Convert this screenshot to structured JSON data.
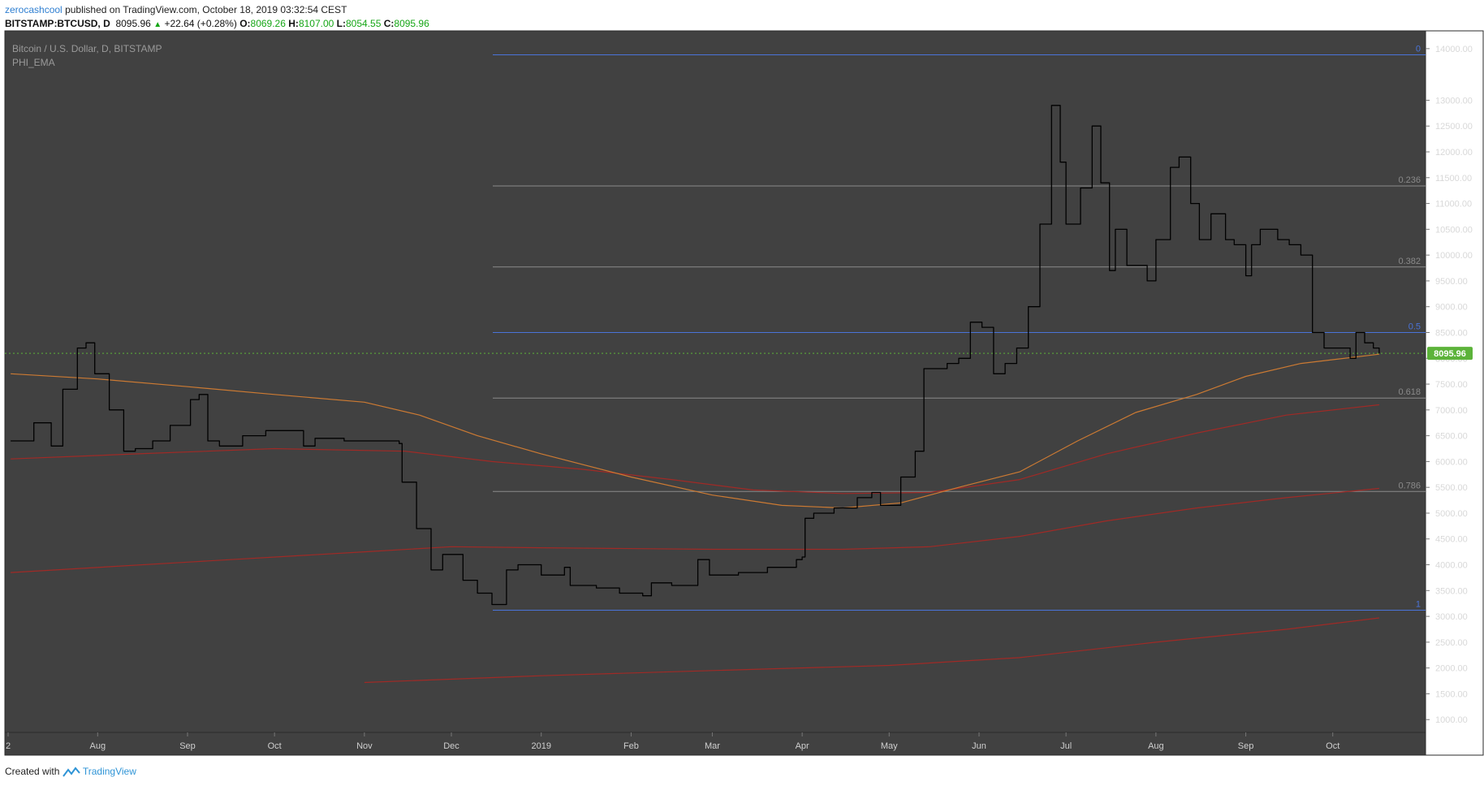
{
  "header": {
    "user": "zerocashcool",
    "published": "published on TradingView.com, October 18, 2019 03:32:54 CEST",
    "symbol": "BITSTAMP:BTCUSD, D",
    "last": "8095.96",
    "change": "+22.64 (+0.28%)",
    "o_label": "O:",
    "o": "8069.26",
    "h_label": "H:",
    "h": "8107.00",
    "l_label": "L:",
    "l": "8054.55",
    "c_label": "C:",
    "c": "8095.96"
  },
  "footer": {
    "created_with": "Created with",
    "brand": "TradingView"
  },
  "colors": {
    "background": "#414141",
    "price": "#000000",
    "fib_blue": "#4a73d8",
    "fib_gray": "#8a8a8a",
    "ema_orange": "#cc7a33",
    "ema_red": "#a02a26",
    "last_price": "#5cb33a"
  },
  "chart_data": {
    "type": "line",
    "title": "Bitcoin / U.S. Dollar, D, BITSTAMP",
    "indicator": "PHI_EMA",
    "ylim": [
      500,
      14250
    ],
    "y_ticks": [
      "14000.00",
      "13000.00",
      "12500.00",
      "12000.00",
      "11500.00",
      "11000.00",
      "10500.00",
      "10000.00",
      "9500.00",
      "9000.00",
      "8500.00",
      "8000.00",
      "7500.00",
      "7000.00",
      "6500.00",
      "6000.00",
      "5500.00",
      "5000.00",
      "4500.00",
      "4000.00",
      "3500.00",
      "3000.00",
      "2500.00",
      "2000.00",
      "1500.00",
      "1000.00"
    ],
    "x_labels": [
      "2",
      "Aug",
      "Sep",
      "Oct",
      "Nov",
      "Dec",
      "2019",
      "Feb",
      "Mar",
      "Apr",
      "May",
      "Jun",
      "Jul",
      "Aug",
      "Sep",
      "Oct"
    ],
    "last_price_label": "8095.96",
    "last_price": 8095.96,
    "fib_levels": [
      {
        "label": "0",
        "price": 13880,
        "color": "blue"
      },
      {
        "label": "0.236",
        "price": 11340,
        "color": "gray"
      },
      {
        "label": "0.382",
        "price": 9770,
        "color": "gray"
      },
      {
        "label": "0.5",
        "price": 8500,
        "color": "blue"
      },
      {
        "label": "0.618",
        "price": 7230,
        "color": "gray"
      },
      {
        "label": "0.786",
        "price": 5420,
        "color": "gray"
      },
      {
        "label": "1",
        "price": 3120,
        "color": "blue"
      }
    ],
    "series": [
      {
        "line": "price",
        "points": [
          [
            "2018-07-02",
            6400
          ],
          [
            "2018-07-10",
            6750
          ],
          [
            "2018-07-16",
            6300
          ],
          [
            "2018-07-20",
            7400
          ],
          [
            "2018-07-25",
            8200
          ],
          [
            "2018-07-28",
            8300
          ],
          [
            "2018-07-31",
            7700
          ],
          [
            "2018-08-05",
            7000
          ],
          [
            "2018-08-10",
            6200
          ],
          [
            "2018-08-14",
            6250
          ],
          [
            "2018-08-20",
            6400
          ],
          [
            "2018-08-26",
            6700
          ],
          [
            "2018-09-02",
            7200
          ],
          [
            "2018-09-05",
            7300
          ],
          [
            "2018-09-08",
            6400
          ],
          [
            "2018-09-12",
            6300
          ],
          [
            "2018-09-20",
            6500
          ],
          [
            "2018-09-28",
            6600
          ],
          [
            "2018-10-05",
            6600
          ],
          [
            "2018-10-11",
            6300
          ],
          [
            "2018-10-15",
            6450
          ],
          [
            "2018-10-25",
            6400
          ],
          [
            "2018-11-05",
            6400
          ],
          [
            "2018-11-13",
            6350
          ],
          [
            "2018-11-14",
            5600
          ],
          [
            "2018-11-19",
            4700
          ],
          [
            "2018-11-24",
            3900
          ],
          [
            "2018-11-28",
            4200
          ],
          [
            "2018-12-05",
            3700
          ],
          [
            "2018-12-10",
            3450
          ],
          [
            "2018-12-15",
            3230
          ],
          [
            "2018-12-20",
            3900
          ],
          [
            "2018-12-24",
            4000
          ],
          [
            "2019-01-01",
            3800
          ],
          [
            "2019-01-09",
            3950
          ],
          [
            "2019-01-11",
            3600
          ],
          [
            "2019-01-20",
            3550
          ],
          [
            "2019-01-28",
            3450
          ],
          [
            "2019-02-05",
            3400
          ],
          [
            "2019-02-08",
            3650
          ],
          [
            "2019-02-15",
            3600
          ],
          [
            "2019-02-24",
            4100
          ],
          [
            "2019-02-28",
            3800
          ],
          [
            "2019-03-10",
            3850
          ],
          [
            "2019-03-20",
            3950
          ],
          [
            "2019-03-30",
            4100
          ],
          [
            "2019-04-01",
            4150
          ],
          [
            "2019-04-02",
            4900
          ],
          [
            "2019-04-05",
            5000
          ],
          [
            "2019-04-12",
            5100
          ],
          [
            "2019-04-20",
            5300
          ],
          [
            "2019-04-25",
            5400
          ],
          [
            "2019-04-28",
            5150
          ],
          [
            "2019-05-05",
            5700
          ],
          [
            "2019-05-10",
            6200
          ],
          [
            "2019-05-13",
            7800
          ],
          [
            "2019-05-17",
            7800
          ],
          [
            "2019-05-21",
            7900
          ],
          [
            "2019-05-25",
            8000
          ],
          [
            "2019-05-29",
            8700
          ],
          [
            "2019-06-02",
            8600
          ],
          [
            "2019-06-06",
            7700
          ],
          [
            "2019-06-10",
            7900
          ],
          [
            "2019-06-14",
            8200
          ],
          [
            "2019-06-18",
            9000
          ],
          [
            "2019-06-22",
            10600
          ],
          [
            "2019-06-26",
            12900
          ],
          [
            "2019-06-29",
            11800
          ],
          [
            "2019-07-01",
            10600
          ],
          [
            "2019-07-06",
            11300
          ],
          [
            "2019-07-10",
            12500
          ],
          [
            "2019-07-13",
            11400
          ],
          [
            "2019-07-16",
            9700
          ],
          [
            "2019-07-18",
            10500
          ],
          [
            "2019-07-22",
            9800
          ],
          [
            "2019-07-26",
            9800
          ],
          [
            "2019-07-29",
            9500
          ],
          [
            "2019-08-01",
            10300
          ],
          [
            "2019-08-06",
            11700
          ],
          [
            "2019-08-09",
            11900
          ],
          [
            "2019-08-13",
            11000
          ],
          [
            "2019-08-16",
            10300
          ],
          [
            "2019-08-20",
            10800
          ],
          [
            "2019-08-25",
            10300
          ],
          [
            "2019-08-28",
            10200
          ],
          [
            "2019-09-01",
            9600
          ],
          [
            "2019-09-03",
            10200
          ],
          [
            "2019-09-06",
            10500
          ],
          [
            "2019-09-12",
            10300
          ],
          [
            "2019-09-16",
            10200
          ],
          [
            "2019-09-20",
            10000
          ],
          [
            "2019-09-24",
            8500
          ],
          [
            "2019-09-28",
            8200
          ],
          [
            "2019-10-03",
            8200
          ],
          [
            "2019-10-07",
            8000
          ],
          [
            "2019-10-09",
            8500
          ],
          [
            "2019-10-12",
            8300
          ],
          [
            "2019-10-15",
            8200
          ],
          [
            "2019-10-17",
            8096
          ]
        ]
      },
      {
        "line": "ema-orange",
        "points": [
          [
            "2018-07-02",
            7700
          ],
          [
            "2018-08-01",
            7600
          ],
          [
            "2018-09-01",
            7450
          ],
          [
            "2018-10-01",
            7300
          ],
          [
            "2018-11-01",
            7150
          ],
          [
            "2018-11-20",
            6900
          ],
          [
            "2018-12-10",
            6500
          ],
          [
            "2019-01-01",
            6150
          ],
          [
            "2019-02-01",
            5700
          ],
          [
            "2019-03-01",
            5350
          ],
          [
            "2019-03-25",
            5150
          ],
          [
            "2019-04-15",
            5100
          ],
          [
            "2019-05-05",
            5200
          ],
          [
            "2019-05-25",
            5500
          ],
          [
            "2019-06-15",
            5800
          ],
          [
            "2019-07-05",
            6400
          ],
          [
            "2019-07-25",
            6950
          ],
          [
            "2019-08-15",
            7300
          ],
          [
            "2019-09-01",
            7650
          ],
          [
            "2019-09-20",
            7900
          ],
          [
            "2019-10-17",
            8080
          ]
        ]
      },
      {
        "line": "ema-red-1",
        "points": [
          [
            "2018-07-02",
            6050
          ],
          [
            "2018-08-15",
            6150
          ],
          [
            "2018-10-01",
            6250
          ],
          [
            "2018-11-15",
            6200
          ],
          [
            "2018-12-15",
            6000
          ],
          [
            "2019-01-15",
            5850
          ],
          [
            "2019-02-15",
            5650
          ],
          [
            "2019-03-15",
            5450
          ],
          [
            "2019-04-15",
            5380
          ],
          [
            "2019-05-15",
            5400
          ],
          [
            "2019-06-15",
            5650
          ],
          [
            "2019-07-15",
            6150
          ],
          [
            "2019-08-15",
            6550
          ],
          [
            "2019-09-15",
            6900
          ],
          [
            "2019-10-17",
            7100
          ]
        ]
      },
      {
        "line": "ema-red-2",
        "points": [
          [
            "2018-07-02",
            3850
          ],
          [
            "2018-09-01",
            4050
          ],
          [
            "2018-11-01",
            4250
          ],
          [
            "2018-12-01",
            4350
          ],
          [
            "2019-01-01",
            4330
          ],
          [
            "2019-03-01",
            4300
          ],
          [
            "2019-04-15",
            4300
          ],
          [
            "2019-05-15",
            4350
          ],
          [
            "2019-06-15",
            4550
          ],
          [
            "2019-07-15",
            4850
          ],
          [
            "2019-08-15",
            5100
          ],
          [
            "2019-09-15",
            5300
          ],
          [
            "2019-10-17",
            5480
          ]
        ]
      },
      {
        "line": "ema-red-3",
        "points": [
          [
            "2018-11-01",
            1720
          ],
          [
            "2019-01-01",
            1850
          ],
          [
            "2019-03-01",
            1950
          ],
          [
            "2019-05-01",
            2050
          ],
          [
            "2019-06-15",
            2200
          ],
          [
            "2019-08-01",
            2500
          ],
          [
            "2019-09-15",
            2750
          ],
          [
            "2019-10-17",
            2970
          ]
        ]
      }
    ]
  }
}
